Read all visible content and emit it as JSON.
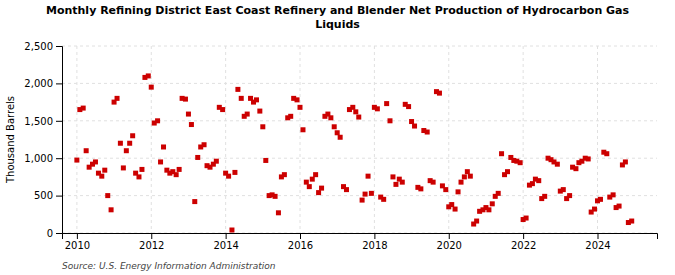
{
  "chart_data": {
    "type": "scatter",
    "title": "Monthly Refining District East Coast Refinery and Blender Net Production of Hydrocarbon Gas\nLiquids",
    "y_label": "Thousand Barrels",
    "source": "Source: U.S. Energy Information Administration",
    "color": "#cc0000",
    "marker": "square",
    "grid": true,
    "xlim": [
      2009.6,
      2025.6
    ],
    "xticks": [
      2010,
      2012,
      2014,
      2016,
      2018,
      2020,
      2022,
      2024
    ],
    "ylim": [
      0,
      2500
    ],
    "yticks": [
      0,
      500,
      {
        "value": 1000,
        "label": "1,000"
      },
      {
        "value": 1500,
        "label": "1,500"
      },
      {
        "value": 2000,
        "label": "2,000"
      },
      {
        "value": 2500,
        "label": "2,500"
      }
    ],
    "x": [
      2010.0,
      2010.08,
      2010.17,
      2010.25,
      2010.33,
      2010.42,
      2010.5,
      2010.58,
      2010.67,
      2010.75,
      2010.83,
      2010.92,
      2011.0,
      2011.08,
      2011.17,
      2011.25,
      2011.33,
      2011.42,
      2011.5,
      2011.58,
      2011.67,
      2011.75,
      2011.83,
      2011.92,
      2012.0,
      2012.08,
      2012.17,
      2012.25,
      2012.33,
      2012.42,
      2012.5,
      2012.58,
      2012.67,
      2012.75,
      2012.83,
      2012.92,
      2013.0,
      2013.08,
      2013.17,
      2013.25,
      2013.33,
      2013.42,
      2013.5,
      2013.58,
      2013.67,
      2013.75,
      2013.83,
      2013.92,
      2014.0,
      2014.08,
      2014.17,
      2014.25,
      2014.33,
      2014.42,
      2014.5,
      2014.58,
      2014.67,
      2014.75,
      2014.83,
      2014.92,
      2015.0,
      2015.08,
      2015.17,
      2015.25,
      2015.33,
      2015.42,
      2015.5,
      2015.58,
      2015.67,
      2015.75,
      2015.83,
      2015.92,
      2016.0,
      2016.08,
      2016.17,
      2016.25,
      2016.33,
      2016.42,
      2016.5,
      2016.58,
      2016.67,
      2016.75,
      2016.83,
      2016.92,
      2017.0,
      2017.08,
      2017.17,
      2017.25,
      2017.33,
      2017.42,
      2017.5,
      2017.58,
      2017.67,
      2017.75,
      2017.83,
      2017.92,
      2018.0,
      2018.08,
      2018.17,
      2018.25,
      2018.33,
      2018.42,
      2018.5,
      2018.58,
      2018.67,
      2018.75,
      2018.83,
      2018.92,
      2019.0,
      2019.08,
      2019.17,
      2019.25,
      2019.33,
      2019.42,
      2019.5,
      2019.58,
      2019.67,
      2019.75,
      2019.83,
      2019.92,
      2020.0,
      2020.08,
      2020.17,
      2020.25,
      2020.33,
      2020.42,
      2020.5,
      2020.58,
      2020.67,
      2020.75,
      2020.83,
      2020.92,
      2021.0,
      2021.08,
      2021.17,
      2021.25,
      2021.33,
      2021.42,
      2021.5,
      2021.58,
      2021.67,
      2021.75,
      2021.83,
      2021.92,
      2022.0,
      2022.08,
      2022.17,
      2022.25,
      2022.33,
      2022.42,
      2022.5,
      2022.58,
      2022.67,
      2022.75,
      2022.83,
      2022.92,
      2023.0,
      2023.08,
      2023.17,
      2023.25,
      2023.33,
      2023.42,
      2023.5,
      2023.58,
      2023.67,
      2023.75,
      2023.83,
      2023.92,
      2024.0,
      2024.08,
      2024.17,
      2024.25,
      2024.33,
      2024.42,
      2024.5,
      2024.58,
      2024.67,
      2024.75,
      2024.83,
      2024.92
    ],
    "values": [
      975,
      1650,
      1670,
      1100,
      880,
      920,
      950,
      800,
      760,
      840,
      500,
      310,
      1750,
      1800,
      1200,
      870,
      1100,
      1200,
      1300,
      800,
      750,
      850,
      2080,
      2100,
      1950,
      1470,
      1500,
      950,
      1150,
      840,
      800,
      820,
      780,
      850,
      1800,
      1790,
      1590,
      1450,
      420,
      1010,
      1150,
      1180,
      900,
      880,
      920,
      960,
      1680,
      1650,
      800,
      760,
      40,
      810,
      1920,
      1800,
      1560,
      1590,
      1800,
      1750,
      1780,
      1630,
      1420,
      970,
      500,
      510,
      490,
      270,
      750,
      780,
      1540,
      1560,
      1800,
      1780,
      1680,
      1380,
      680,
      620,
      720,
      780,
      540,
      600,
      1560,
      1590,
      1540,
      1420,
      1340,
      1280,
      620,
      580,
      1650,
      1680,
      1620,
      1550,
      440,
      520,
      760,
      530,
      1680,
      1660,
      480,
      450,
      1730,
      1500,
      750,
      650,
      720,
      680,
      1720,
      1690,
      1490,
      1430,
      610,
      590,
      1370,
      1350,
      700,
      680,
      1890,
      1870,
      630,
      580,
      350,
      380,
      320,
      550,
      680,
      750,
      820,
      760,
      120,
      160,
      290,
      310,
      340,
      310,
      390,
      490,
      530,
      1060,
      780,
      820,
      1010,
      970,
      960,
      940,
      180,
      200,
      640,
      660,
      720,
      700,
      460,
      490,
      1000,
      980,
      950,
      920,
      560,
      580,
      460,
      500,
      880,
      860,
      940,
      960,
      1000,
      990,
      280,
      320,
      430,
      450,
      1080,
      1060,
      480,
      510,
      340,
      360,
      910,
      950,
      140,
      160
    ]
  }
}
